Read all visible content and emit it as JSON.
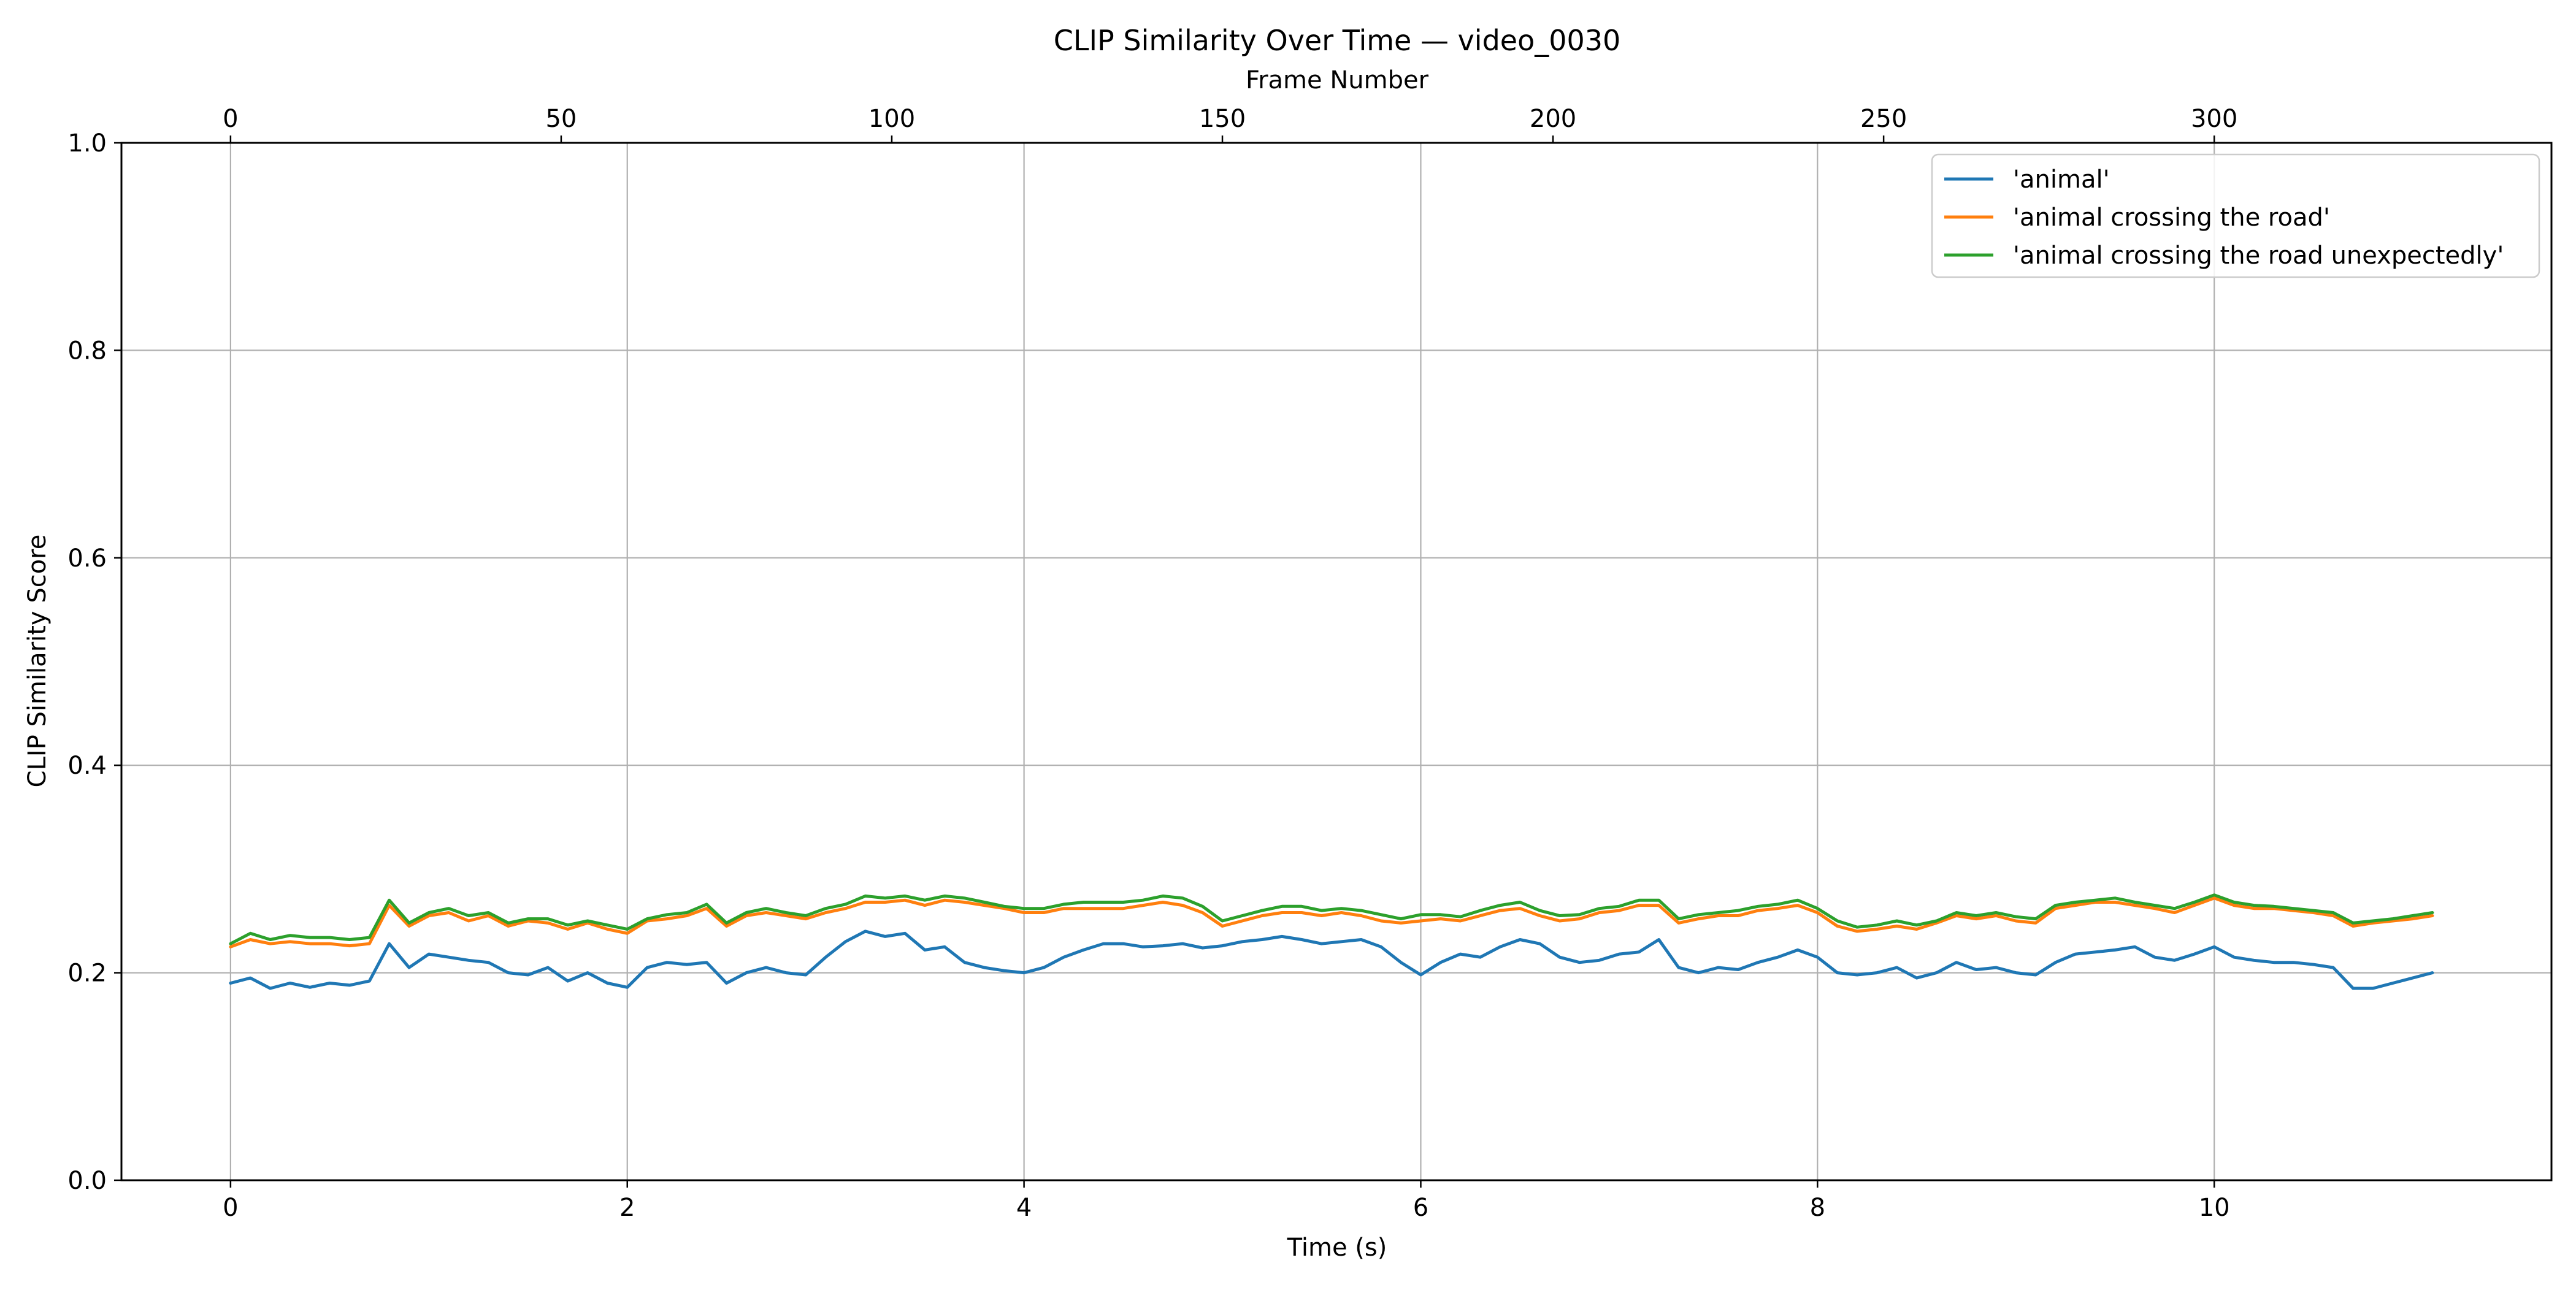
{
  "chart_data": {
    "type": "line",
    "title": "CLIP Similarity Over Time — video_0030",
    "xlabel": "Time (s)",
    "ylabel": "CLIP Similarity Score",
    "x2label": "Frame Number",
    "xlim": [
      -0.55,
      11.7
    ],
    "ylim": [
      0.0,
      1.0
    ],
    "xticks": [
      0,
      2,
      4,
      6,
      8,
      10
    ],
    "yticks": [
      0.0,
      0.2,
      0.4,
      0.6,
      0.8,
      1.0
    ],
    "x2ticks": [
      0,
      50,
      100,
      150,
      200,
      250,
      300
    ],
    "frames_per_second": 30,
    "grid": true,
    "legend_position": "top-right",
    "x": [
      0.0,
      0.1,
      0.2,
      0.3,
      0.4,
      0.5,
      0.6,
      0.7,
      0.8,
      0.9,
      1.0,
      1.1,
      1.2,
      1.3,
      1.4,
      1.5,
      1.6,
      1.7,
      1.8,
      1.9,
      2.0,
      2.1,
      2.2,
      2.3,
      2.4,
      2.5,
      2.6,
      2.7,
      2.8,
      2.9,
      3.0,
      3.1,
      3.2,
      3.3,
      3.4,
      3.5,
      3.6,
      3.7,
      3.8,
      3.9,
      4.0,
      4.1,
      4.2,
      4.3,
      4.4,
      4.5,
      4.6,
      4.7,
      4.8,
      4.9,
      5.0,
      5.1,
      5.2,
      5.3,
      5.4,
      5.5,
      5.6,
      5.7,
      5.8,
      5.9,
      6.0,
      6.1,
      6.2,
      6.3,
      6.4,
      6.5,
      6.6,
      6.7,
      6.8,
      6.9,
      7.0,
      7.1,
      7.2,
      7.3,
      7.4,
      7.5,
      7.6,
      7.7,
      7.8,
      7.9,
      8.0,
      8.1,
      8.2,
      8.3,
      8.4,
      8.5,
      8.6,
      8.7,
      8.8,
      8.9,
      9.0,
      9.1,
      9.2,
      9.3,
      9.4,
      9.5,
      9.6,
      9.7,
      9.8,
      9.9,
      10.0,
      10.1,
      10.2,
      10.3,
      10.4,
      10.5,
      10.6,
      10.7,
      10.8,
      10.9,
      11.0,
      11.1
    ],
    "series": [
      {
        "name": "'animal'",
        "color": "#1f77b4",
        "values": [
          0.19,
          0.195,
          0.185,
          0.19,
          0.186,
          0.19,
          0.188,
          0.192,
          0.228,
          0.205,
          0.218,
          0.215,
          0.212,
          0.21,
          0.2,
          0.198,
          0.205,
          0.192,
          0.2,
          0.19,
          0.186,
          0.205,
          0.21,
          0.208,
          0.21,
          0.19,
          0.2,
          0.205,
          0.2,
          0.198,
          0.215,
          0.23,
          0.24,
          0.235,
          0.238,
          0.222,
          0.225,
          0.21,
          0.205,
          0.202,
          0.2,
          0.205,
          0.215,
          0.222,
          0.228,
          0.228,
          0.225,
          0.226,
          0.228,
          0.224,
          0.226,
          0.23,
          0.232,
          0.235,
          0.232,
          0.228,
          0.23,
          0.232,
          0.225,
          0.21,
          0.198,
          0.21,
          0.218,
          0.215,
          0.225,
          0.232,
          0.228,
          0.215,
          0.21,
          0.212,
          0.218,
          0.22,
          0.232,
          0.205,
          0.2,
          0.205,
          0.203,
          0.21,
          0.215,
          0.222,
          0.215,
          0.2,
          0.198,
          0.2,
          0.205,
          0.195,
          0.2,
          0.21,
          0.203,
          0.205,
          0.2,
          0.198,
          0.21,
          0.218,
          0.22,
          0.222,
          0.225,
          0.215,
          0.212,
          0.218,
          0.225,
          0.215,
          0.212,
          0.21,
          0.21,
          0.208,
          0.205,
          0.185,
          0.185,
          0.19,
          0.195,
          0.2
        ]
      },
      {
        "name": "'animal crossing the road'",
        "color": "#ff7f0e",
        "values": [
          0.225,
          0.232,
          0.228,
          0.23,
          0.228,
          0.228,
          0.226,
          0.228,
          0.265,
          0.245,
          0.255,
          0.258,
          0.25,
          0.255,
          0.245,
          0.25,
          0.248,
          0.242,
          0.248,
          0.242,
          0.238,
          0.25,
          0.252,
          0.255,
          0.262,
          0.245,
          0.255,
          0.258,
          0.255,
          0.252,
          0.258,
          0.262,
          0.268,
          0.268,
          0.27,
          0.265,
          0.27,
          0.268,
          0.265,
          0.262,
          0.258,
          0.258,
          0.262,
          0.262,
          0.262,
          0.262,
          0.265,
          0.268,
          0.265,
          0.258,
          0.245,
          0.25,
          0.255,
          0.258,
          0.258,
          0.255,
          0.258,
          0.255,
          0.25,
          0.248,
          0.25,
          0.252,
          0.25,
          0.255,
          0.26,
          0.262,
          0.255,
          0.25,
          0.252,
          0.258,
          0.26,
          0.265,
          0.265,
          0.248,
          0.252,
          0.255,
          0.255,
          0.26,
          0.262,
          0.265,
          0.258,
          0.245,
          0.24,
          0.242,
          0.245,
          0.242,
          0.248,
          0.255,
          0.252,
          0.255,
          0.25,
          0.248,
          0.262,
          0.265,
          0.268,
          0.268,
          0.265,
          0.262,
          0.258,
          0.265,
          0.272,
          0.265,
          0.262,
          0.262,
          0.26,
          0.258,
          0.255,
          0.245,
          0.248,
          0.25,
          0.252,
          0.255
        ]
      },
      {
        "name": "'animal crossing the road unexpectedly'",
        "color": "#2ca02c",
        "values": [
          0.228,
          0.238,
          0.232,
          0.236,
          0.234,
          0.234,
          0.232,
          0.234,
          0.27,
          0.248,
          0.258,
          0.262,
          0.255,
          0.258,
          0.248,
          0.252,
          0.252,
          0.246,
          0.25,
          0.246,
          0.242,
          0.252,
          0.256,
          0.258,
          0.266,
          0.248,
          0.258,
          0.262,
          0.258,
          0.255,
          0.262,
          0.266,
          0.274,
          0.272,
          0.274,
          0.27,
          0.274,
          0.272,
          0.268,
          0.264,
          0.262,
          0.262,
          0.266,
          0.268,
          0.268,
          0.268,
          0.27,
          0.274,
          0.272,
          0.264,
          0.25,
          0.255,
          0.26,
          0.264,
          0.264,
          0.26,
          0.262,
          0.26,
          0.256,
          0.252,
          0.256,
          0.256,
          0.254,
          0.26,
          0.265,
          0.268,
          0.26,
          0.255,
          0.256,
          0.262,
          0.264,
          0.27,
          0.27,
          0.252,
          0.256,
          0.258,
          0.26,
          0.264,
          0.266,
          0.27,
          0.262,
          0.25,
          0.244,
          0.246,
          0.25,
          0.246,
          0.25,
          0.258,
          0.255,
          0.258,
          0.254,
          0.252,
          0.265,
          0.268,
          0.27,
          0.272,
          0.268,
          0.265,
          0.262,
          0.268,
          0.275,
          0.268,
          0.265,
          0.264,
          0.262,
          0.26,
          0.258,
          0.248,
          0.25,
          0.252,
          0.255,
          0.258
        ]
      }
    ]
  }
}
